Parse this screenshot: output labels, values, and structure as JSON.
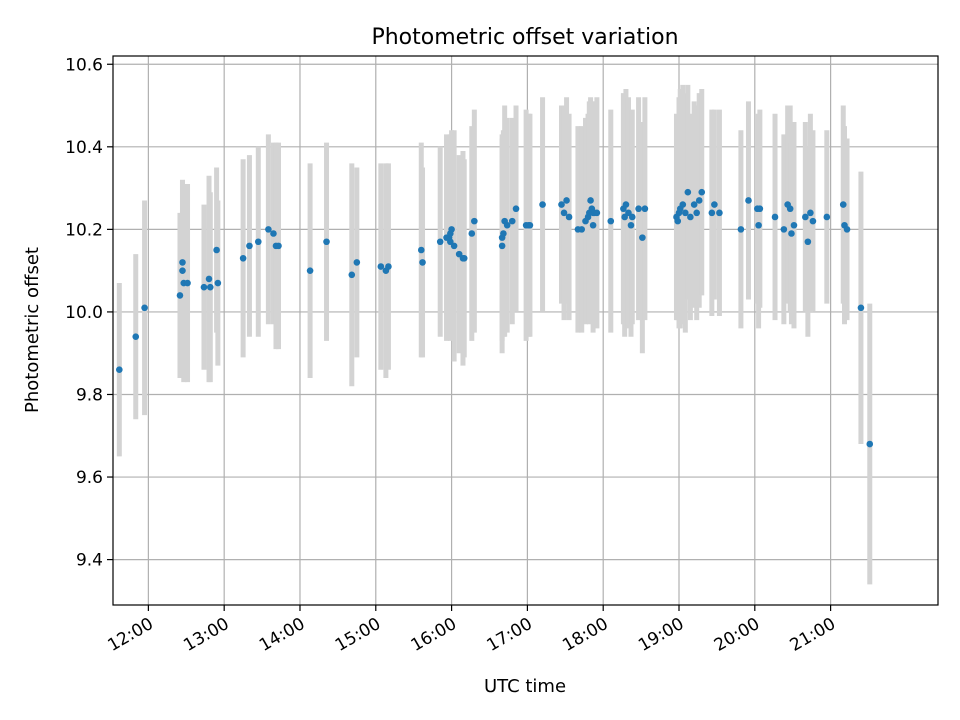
{
  "chart_data": {
    "type": "scatter",
    "title": "Photometric offset variation",
    "xlabel": "UTC time",
    "ylabel": "Photometric offset",
    "grid": true,
    "legend": "none",
    "x_ticks": [
      "12:00",
      "13:00",
      "14:00",
      "15:00",
      "16:00",
      "17:00",
      "18:00",
      "19:00",
      "20:00",
      "21:00"
    ],
    "y_ticks": [
      "9.4",
      "9.6",
      "9.8",
      "10.0",
      "10.2",
      "10.4",
      "10.6"
    ],
    "xlim": [
      "11:32",
      "22:25"
    ],
    "ylim": [
      9.29,
      10.62
    ],
    "colors": {
      "point": "#1f77b4",
      "errorbar": "#d3d3d3",
      "grid": "#b0b0b0"
    },
    "series": [
      {
        "x": [
          "11:37",
          "11:50",
          "11:57",
          "12:25",
          "12:27",
          "12:27",
          "12:28",
          "12:31",
          "12:44",
          "12:48",
          "12:49",
          "12:54",
          "12:55",
          "13:15",
          "13:20",
          "13:27",
          "13:35",
          "13:39",
          "13:41",
          "13:43",
          "14:08",
          "14:21",
          "14:41",
          "14:45",
          "15:04",
          "15:08",
          "15:10",
          "15:36",
          "15:37",
          "15:51",
          "15:56",
          "15:58",
          "15:59",
          "15:59",
          "16:00",
          "16:02",
          "16:06",
          "16:09",
          "16:10",
          "16:16",
          "16:18",
          "16:40",
          "16:40",
          "16:41",
          "16:42",
          "16:44",
          "16:48",
          "16:51",
          "16:59",
          "17:01",
          "17:02",
          "17:12",
          "17:27",
          "17:29",
          "17:31",
          "17:33",
          "17:40",
          "17:43",
          "17:46",
          "17:48",
          "17:49",
          "17:50",
          "17:51",
          "17:52",
          "17:52",
          "17:53",
          "17:55",
          "18:06",
          "18:16",
          "18:17",
          "18:18",
          "18:20",
          "18:22",
          "18:23",
          "18:28",
          "18:31",
          "18:33",
          "18:58",
          "18:59",
          "19:00",
          "19:01",
          "19:03",
          "19:05",
          "19:07",
          "19:09",
          "19:12",
          "19:14",
          "19:16",
          "19:18",
          "19:26",
          "19:28",
          "19:32",
          "19:49",
          "19:55",
          "20:02",
          "20:03",
          "20:04",
          "20:16",
          "20:23",
          "20:26",
          "20:28",
          "20:29",
          "20:31",
          "20:40",
          "20:42",
          "20:44",
          "20:46",
          "20:57",
          "21:10",
          "21:11",
          "21:13",
          "21:24",
          "21:31"
        ],
        "y": [
          9.86,
          9.94,
          10.01,
          10.04,
          10.12,
          10.1,
          10.07,
          10.07,
          10.06,
          10.08,
          10.06,
          10.15,
          10.07,
          10.13,
          10.16,
          10.17,
          10.2,
          10.19,
          10.16,
          10.16,
          10.1,
          10.17,
          10.09,
          10.12,
          10.11,
          10.1,
          10.11,
          10.15,
          10.12,
          10.17,
          10.18,
          10.18,
          10.19,
          10.17,
          10.2,
          10.16,
          10.14,
          10.13,
          10.13,
          10.19,
          10.22,
          10.16,
          10.18,
          10.19,
          10.22,
          10.21,
          10.22,
          10.25,
          10.21,
          10.21,
          10.21,
          10.26,
          10.26,
          10.24,
          10.27,
          10.23,
          10.2,
          10.2,
          10.22,
          10.23,
          10.24,
          10.27,
          10.25,
          10.24,
          10.21,
          10.24,
          10.24,
          10.22,
          10.25,
          10.23,
          10.26,
          10.24,
          10.21,
          10.23,
          10.25,
          10.18,
          10.25,
          10.23,
          10.22,
          10.24,
          10.25,
          10.26,
          10.24,
          10.29,
          10.23,
          10.26,
          10.24,
          10.27,
          10.29,
          10.24,
          10.26,
          10.24,
          10.2,
          10.27,
          10.25,
          10.21,
          10.25,
          10.23,
          10.2,
          10.26,
          10.25,
          10.19,
          10.21,
          10.23,
          10.17,
          10.24,
          10.22,
          10.23,
          10.26,
          10.21,
          10.2,
          10.01,
          9.68
        ],
        "yerr": [
          0.21,
          0.2,
          0.26,
          0.2,
          0.2,
          0.22,
          0.24,
          0.24,
          0.2,
          0.25,
          0.23,
          0.2,
          0.2,
          0.24,
          0.22,
          0.23,
          0.23,
          0.22,
          0.25,
          0.25,
          0.26,
          0.24,
          0.27,
          0.23,
          0.25,
          0.26,
          0.25,
          0.26,
          0.23,
          0.23,
          0.25,
          0.24,
          0.24,
          0.24,
          0.24,
          0.28,
          0.24,
          0.26,
          0.24,
          0.26,
          0.27,
          0.26,
          0.25,
          0.25,
          0.28,
          0.26,
          0.25,
          0.25,
          0.28,
          0.27,
          0.27,
          0.26,
          0.24,
          0.26,
          0.25,
          0.25,
          0.25,
          0.25,
          0.25,
          0.25,
          0.27,
          0.25,
          0.26,
          0.27,
          0.26,
          0.26,
          0.28,
          0.27,
          0.28,
          0.29,
          0.28,
          0.28,
          0.27,
          0.26,
          0.27,
          0.28,
          0.27,
          0.25,
          0.24,
          0.28,
          0.29,
          0.29,
          0.29,
          0.26,
          0.25,
          0.25,
          0.26,
          0.26,
          0.25,
          0.25,
          0.23,
          0.25,
          0.24,
          0.24,
          0.23,
          0.25,
          0.24,
          0.25,
          0.23,
          0.24,
          0.25,
          0.22,
          0.25,
          0.23,
          0.23,
          0.24,
          0.22,
          0.21,
          0.24,
          0.24,
          0.22,
          0.33,
          0.34
        ]
      }
    ]
  }
}
